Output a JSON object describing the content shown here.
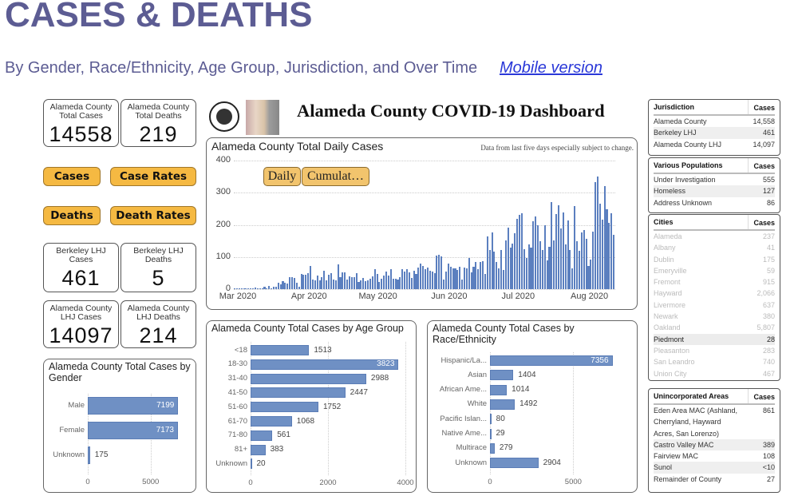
{
  "header": {
    "title": "CASES & DEATHS",
    "subtitle": "By Gender, Race/Ethnicity, Age Group, Jurisdiction, and Over Time",
    "mobile_link": "Mobile version"
  },
  "colors": {
    "title": "#5c5c93",
    "link": "#2a38d8",
    "button": "#f5b942",
    "bar": "#6f90c4"
  },
  "kpis": {
    "county_cases": {
      "label": "Alameda County Total Cases",
      "value": "14558"
    },
    "county_deaths": {
      "label": "Alameda County Total Deaths",
      "value": "219"
    },
    "berkeley_cases": {
      "label": "Berkeley LHJ Cases",
      "value": "461"
    },
    "berkeley_deaths": {
      "label": "Berkeley LHJ Deaths",
      "value": "5"
    },
    "lhj_cases": {
      "label": "Alameda County LHJ Cases",
      "value": "14097"
    },
    "lhj_deaths": {
      "label": "Alameda County LHJ Deaths",
      "value": "214"
    }
  },
  "nav_buttons": {
    "cases": "Cases",
    "case_rates": "Case Rates",
    "deaths": "Deaths",
    "death_rates": "Death Rates"
  },
  "dashboard": {
    "title": "Alameda County COVID-19 Dashboard",
    "logos": [
      "county-seal",
      "city-of-berkeley-logo"
    ]
  },
  "daily_chart": {
    "title": "Alameda County Total Daily Cases",
    "note": "Data from last five days especially subject to change.",
    "toggle_daily": "Daily",
    "toggle_cumulative": "Cumulat…"
  },
  "tables": {
    "jurisdiction": {
      "header": [
        "Jurisdiction",
        "Cases"
      ],
      "rows": [
        [
          "Alameda County",
          "14,558"
        ],
        [
          "Berkeley LHJ",
          "461"
        ],
        [
          "Alameda County LHJ",
          "14,097"
        ]
      ]
    },
    "populations": {
      "header": [
        "Various Populations",
        "Cases"
      ],
      "rows": [
        [
          "Under Investigation",
          "555"
        ],
        [
          "Homeless",
          "127"
        ],
        [
          "Address Unknown",
          "86"
        ]
      ]
    },
    "cities": {
      "header": [
        "Cities",
        "Cases"
      ],
      "selected": "Piedmont",
      "rows": [
        [
          "Alameda",
          "237"
        ],
        [
          "Albany",
          "41"
        ],
        [
          "Dublin",
          "175"
        ],
        [
          "Emeryville",
          "59"
        ],
        [
          "Fremont",
          "915"
        ],
        [
          "Hayward",
          "2,066"
        ],
        [
          "Livermore",
          "637"
        ],
        [
          "Newark",
          "380"
        ],
        [
          "Oakland",
          "5,807"
        ],
        [
          "Piedmont",
          "28"
        ],
        [
          "Pleasanton",
          "283"
        ],
        [
          "San Leandro",
          "740"
        ],
        [
          "Union City",
          "467"
        ]
      ]
    },
    "unincorporated": {
      "header": [
        "Unincorporated Areas",
        "Cases"
      ],
      "rows": [
        [
          "Eden Area MAC (Ashland, Cherryland, Hayward Acres, San Lorenzo)",
          "861"
        ],
        [
          "Castro Valley MAC",
          "389"
        ],
        [
          "Fairview MAC",
          "108"
        ],
        [
          "Sunol",
          "<10"
        ],
        [
          "Remainder of County",
          "27"
        ]
      ]
    }
  },
  "chart_data": [
    {
      "type": "bar",
      "title": "Alameda County Total Daily Cases",
      "xlabel": "",
      "ylabel": "",
      "ylim": [
        0,
        400
      ],
      "yticks": [
        0,
        100,
        200,
        300,
        400
      ],
      "xticks": [
        "Mar 2020",
        "Apr 2020",
        "May 2020",
        "Jun 2020",
        "Jul 2020",
        "Aug 2020"
      ],
      "grid": true,
      "x_start": "2020-03-01",
      "values": [
        1,
        0,
        0,
        0,
        0,
        1,
        2,
        0,
        1,
        6,
        3,
        2,
        3,
        7,
        1,
        10,
        2,
        8,
        7,
        20,
        16,
        26,
        21,
        18,
        37,
        37,
        34,
        19,
        8,
        48,
        44,
        44,
        50,
        73,
        30,
        28,
        42,
        28,
        37,
        56,
        28,
        45,
        49,
        30,
        28,
        78,
        38,
        52,
        53,
        31,
        40,
        38,
        38,
        50,
        22,
        27,
        35,
        24,
        28,
        33,
        40,
        62,
        46,
        23,
        33,
        43,
        54,
        43,
        62,
        33,
        33,
        31,
        38,
        63,
        55,
        61,
        52,
        36,
        58,
        48,
        68,
        79,
        72,
        62,
        67,
        58,
        55,
        50,
        105,
        108,
        102,
        30,
        55,
        80,
        70,
        65,
        65,
        60,
        70,
        30,
        68,
        64,
        97,
        52,
        70,
        85,
        63,
        85,
        88,
        46,
        165,
        122,
        177,
        118,
        84,
        65,
        122,
        60,
        152,
        192,
        128,
        142,
        173,
        218,
        230,
        236,
        124,
        98,
        140,
        130,
        210,
        225,
        198,
        150,
        122,
        199,
        90,
        132,
        272,
        152,
        233,
        260,
        190,
        238,
        139,
        213,
        121,
        64,
        258,
        150,
        119,
        176,
        185,
        157,
        73,
        93,
        178,
        333,
        350,
        267,
        217,
        320,
        248,
        207,
        236,
        168
      ]
    },
    {
      "type": "bar",
      "orientation": "horizontal",
      "title": "Alameda County Total Cases by Gender",
      "categories": [
        "Male",
        "Female",
        "Unknown"
      ],
      "values": [
        7199,
        7173,
        175
      ],
      "xticks": [
        0,
        5000
      ],
      "xlim": [
        0,
        8000
      ]
    },
    {
      "type": "bar",
      "orientation": "horizontal",
      "title": "Alameda County Total Cases by Age Group",
      "categories": [
        "<18",
        "18-30",
        "31-40",
        "41-50",
        "51-60",
        "61-70",
        "71-80",
        "81+",
        "Unknown"
      ],
      "values": [
        1513,
        3823,
        2988,
        2447,
        1752,
        1068,
        561,
        383,
        20
      ],
      "xticks": [
        0,
        2000,
        4000
      ],
      "xlim": [
        0,
        4000
      ]
    },
    {
      "type": "bar",
      "orientation": "horizontal",
      "title": "Alameda County Total Cases by Race/Ethnicity",
      "categories": [
        "Hispanic/La...",
        "Asian",
        "African Ame...",
        "White",
        "Pacific Islan...",
        "Native Ame...",
        "Multirace",
        "Unknown"
      ],
      "values": [
        7356,
        1404,
        1014,
        1492,
        80,
        29,
        279,
        2904
      ],
      "xticks": [
        0,
        5000
      ],
      "xlim": [
        0,
        8000
      ]
    }
  ]
}
